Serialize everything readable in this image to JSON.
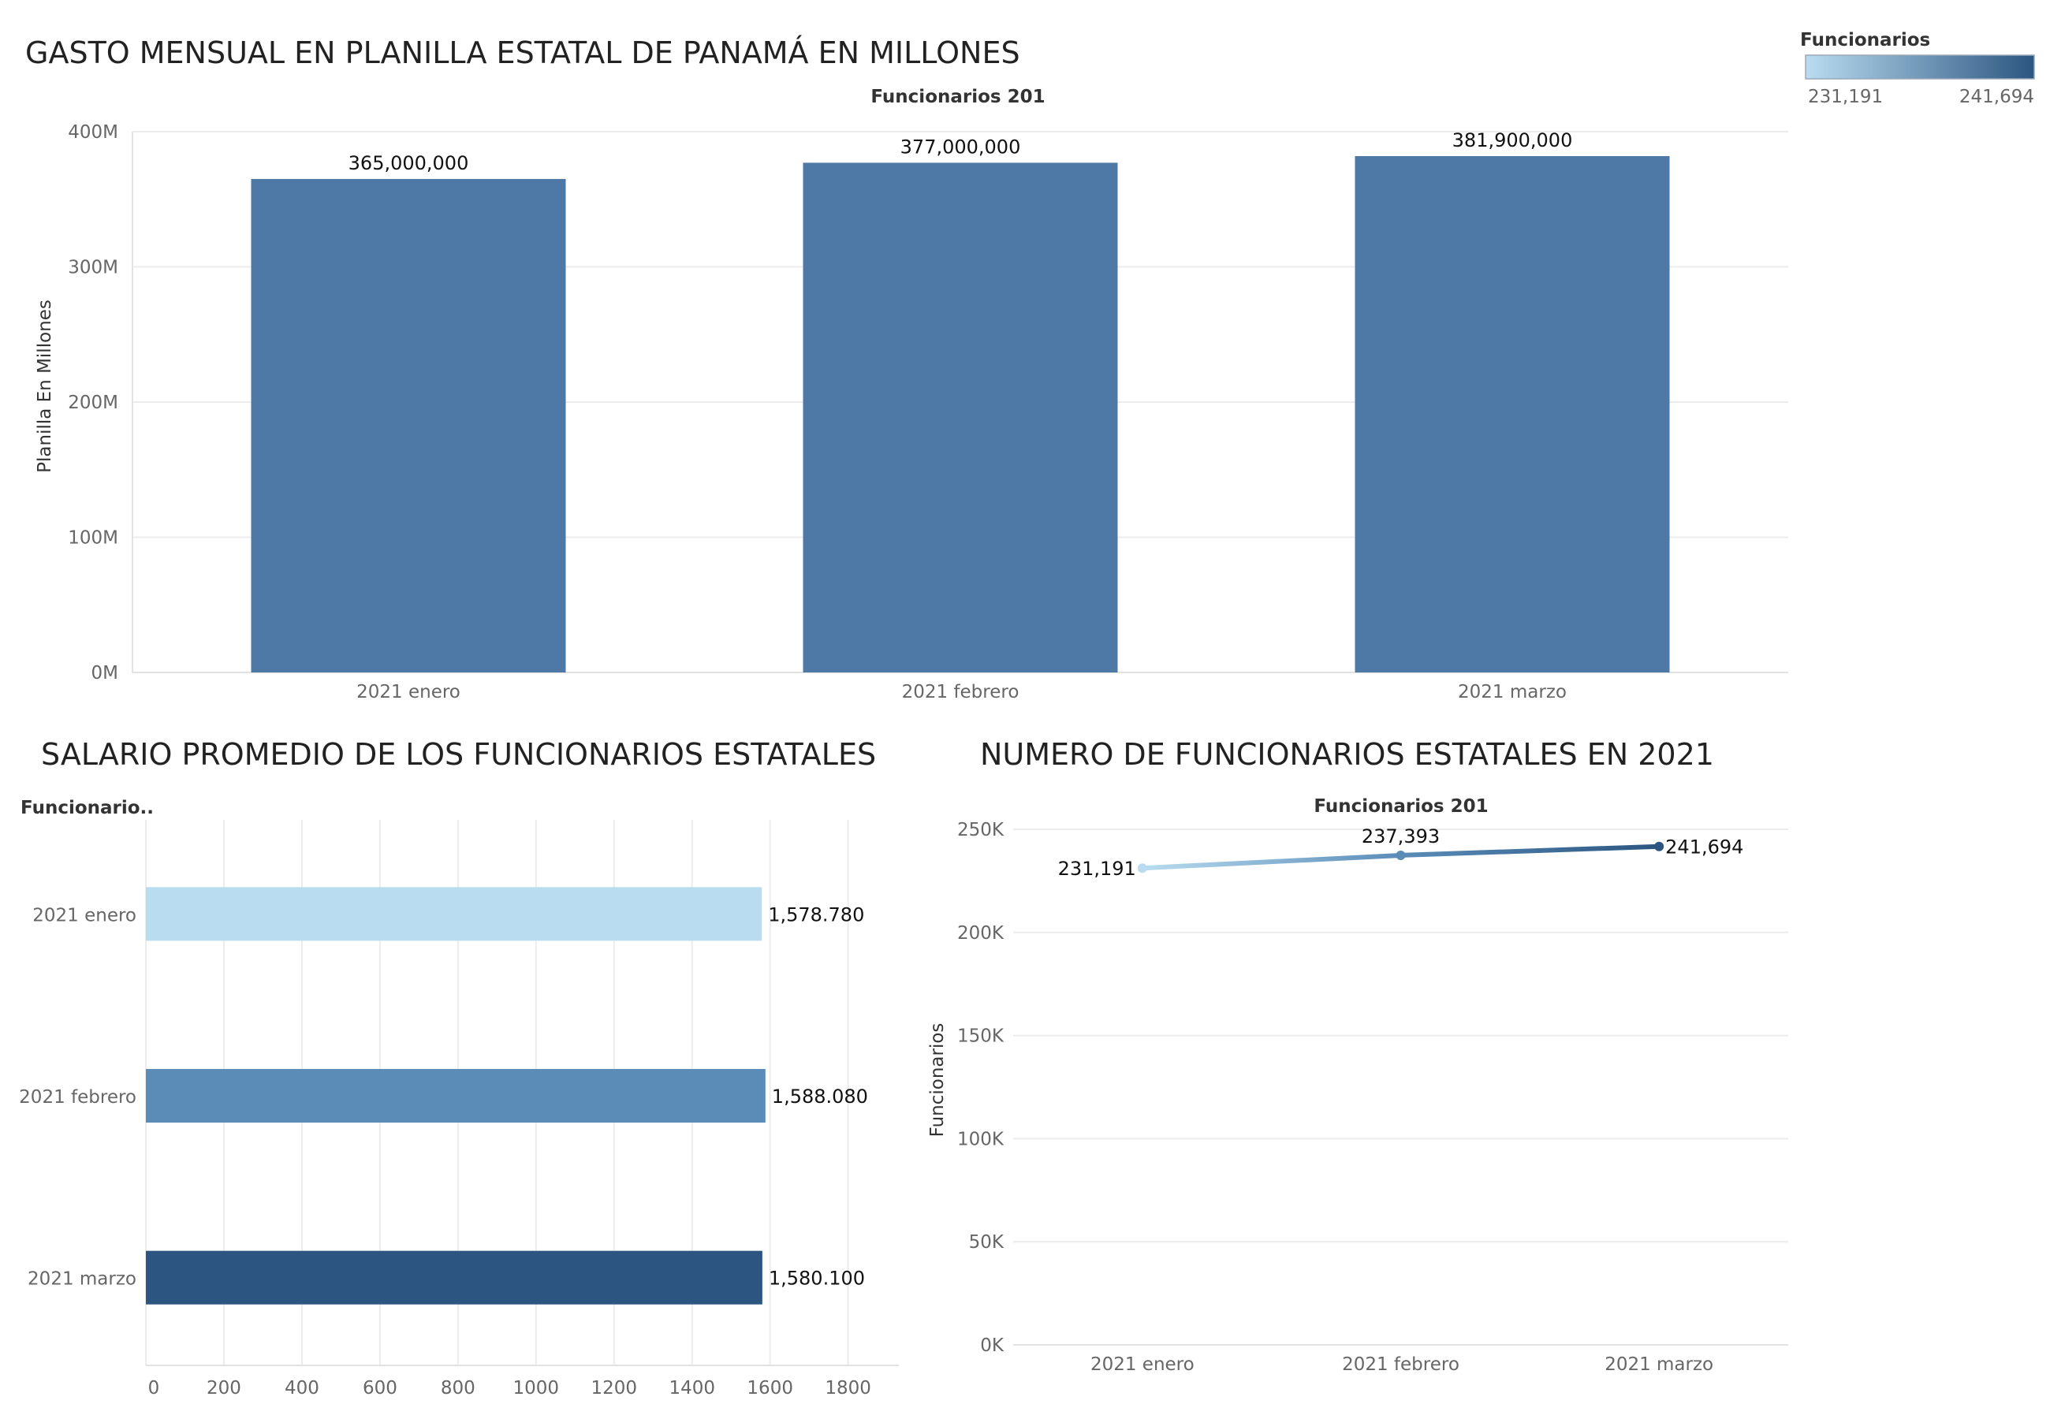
{
  "colors": {
    "ramp_light": "#b9dcf0",
    "ramp_mid": "#5b8cb8",
    "ramp_dark": "#2c5681",
    "bar_main": "#4e79a7"
  },
  "legend": {
    "title": "Funcionarios",
    "min_label": "231,191",
    "max_label": "241,694"
  },
  "chart_data": [
    {
      "type": "bar",
      "title": "GASTO MENSUAL EN PLANILLA ESTATAL DE PANAMÁ EN MILLONES",
      "subtitle": "Funcionarios 201",
      "ylabel": "Planilla En Millones",
      "xlabel": "",
      "categories": [
        "2021 enero",
        "2021 febrero",
        "2021 marzo"
      ],
      "values": [
        365000000,
        377000000,
        381900000
      ],
      "value_labels": [
        "365,000,000",
        "377,000,000",
        "381,900,000"
      ],
      "ylim": [
        0,
        400000000
      ],
      "yticks": [
        0,
        100000000,
        200000000,
        300000000,
        400000000
      ],
      "ytick_labels": [
        "0M",
        "100M",
        "200M",
        "300M",
        "400M"
      ],
      "grid": true
    },
    {
      "type": "bar",
      "orientation": "horizontal",
      "title": "SALARIO PROMEDIO DE LOS FUNCIONARIOS ESTATALES",
      "row_header": "Funcionario..",
      "categories": [
        "2021 enero",
        "2021 febrero",
        "2021 marzo"
      ],
      "values": [
        1578.78,
        1588.08,
        1580.1
      ],
      "value_labels": [
        "1,578.780",
        "1,588.080",
        "1,580.100"
      ],
      "colors": [
        "#b9dcf0",
        "#5b8cb8",
        "#2c5681"
      ],
      "xlim": [
        0,
        1930
      ],
      "xticks": [
        0,
        200,
        400,
        600,
        800,
        1000,
        1200,
        1400,
        1600,
        1800
      ],
      "xtick_labels": [
        "0",
        "200",
        "400",
        "600",
        "800",
        "1000",
        "1200",
        "1400",
        "1600",
        "1800"
      ],
      "grid": true
    },
    {
      "type": "line",
      "title": "NUMERO DE FUNCIONARIOS ESTATALES EN 2021",
      "subtitle": "Funcionarios 201",
      "ylabel": "Funcionarios",
      "categories": [
        "2021 enero",
        "2021 febrero",
        "2021 marzo"
      ],
      "values": [
        231191,
        237393,
        241694
      ],
      "value_labels": [
        "231,191",
        "237,393",
        "241,694"
      ],
      "colors": [
        "#b9dcf0",
        "#5b8cb8",
        "#2c5681"
      ],
      "ylim": [
        0,
        250000
      ],
      "yticks": [
        0,
        50000,
        100000,
        150000,
        200000,
        250000
      ],
      "ytick_labels": [
        "0K",
        "50K",
        "100K",
        "150K",
        "200K",
        "250K"
      ],
      "grid": true
    }
  ]
}
